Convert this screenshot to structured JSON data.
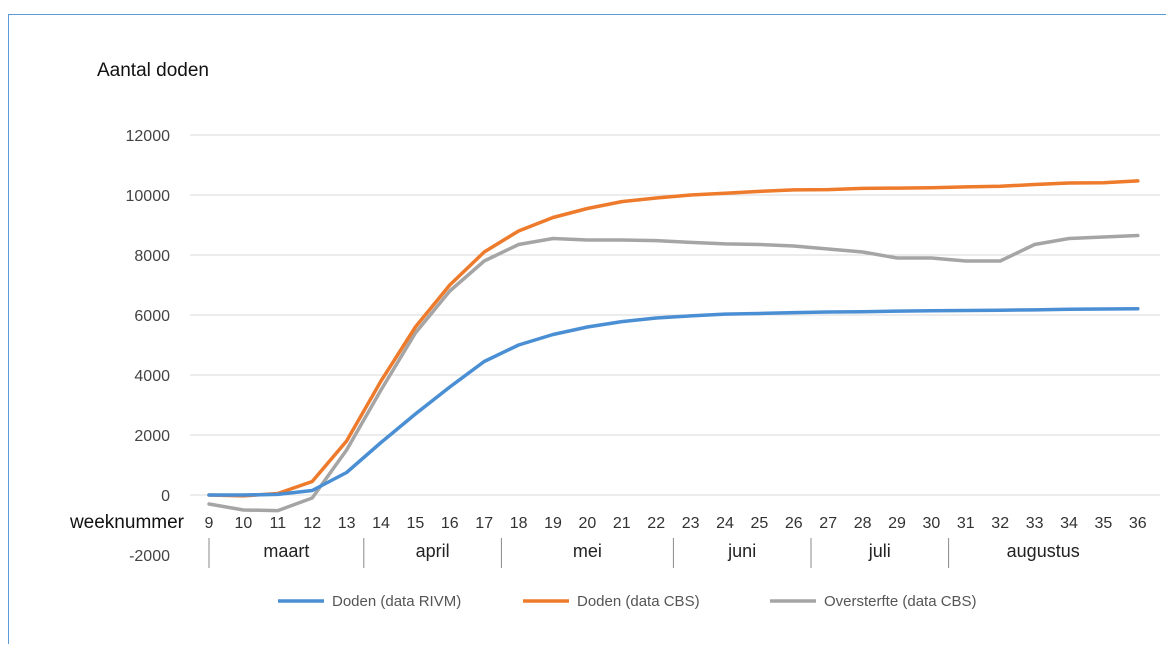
{
  "chart_data": {
    "type": "line",
    "ylabel": "Aantal doden",
    "xlabel": "weeknummer",
    "ylim": [
      -2000,
      12000
    ],
    "yticks": [
      -2000,
      0,
      2000,
      4000,
      6000,
      8000,
      10000,
      12000
    ],
    "x": [
      9,
      10,
      11,
      12,
      13,
      14,
      15,
      16,
      17,
      18,
      19,
      20,
      21,
      22,
      23,
      24,
      25,
      26,
      27,
      28,
      29,
      30,
      31,
      32,
      33,
      34,
      35,
      36
    ],
    "months": [
      {
        "label": "maart",
        "from": 9,
        "to": 13
      },
      {
        "label": "april",
        "from": 14,
        "to": 17
      },
      {
        "label": "mei",
        "from": 18,
        "to": 22
      },
      {
        "label": "juni",
        "from": 23,
        "to": 26
      },
      {
        "label": "juli",
        "from": 27,
        "to": 30
      },
      {
        "label": "augustus",
        "from": 31,
        "to": 36
      }
    ],
    "grid": true,
    "legend_position": "bottom",
    "series": [
      {
        "name": "Doden (data RIVM)",
        "color": "#4a8fd4",
        "values": [
          0,
          0,
          20,
          150,
          750,
          1750,
          2700,
          3600,
          4450,
          5000,
          5350,
          5600,
          5780,
          5900,
          5970,
          6030,
          6050,
          6080,
          6100,
          6110,
          6130,
          6140,
          6150,
          6160,
          6170,
          6190,
          6200,
          6210
        ]
      },
      {
        "name": "Doden (data CBS)",
        "color": "#ee7a2b",
        "values": [
          0,
          -30,
          50,
          450,
          1800,
          3800,
          5600,
          7000,
          8100,
          8800,
          9250,
          9550,
          9780,
          9900,
          10000,
          10060,
          10120,
          10170,
          10180,
          10220,
          10230,
          10240,
          10270,
          10290,
          10350,
          10400,
          10410,
          10470
        ]
      },
      {
        "name": "Oversterfte (data CBS)",
        "color": "#a5a5a5",
        "values": [
          -300,
          -500,
          -520,
          -100,
          1500,
          3500,
          5400,
          6800,
          7800,
          8350,
          8550,
          8500,
          8500,
          8480,
          8420,
          8370,
          8350,
          8300,
          8200,
          8100,
          7900,
          7900,
          7800,
          7800,
          8350,
          8550,
          8600,
          8650
        ]
      }
    ]
  }
}
